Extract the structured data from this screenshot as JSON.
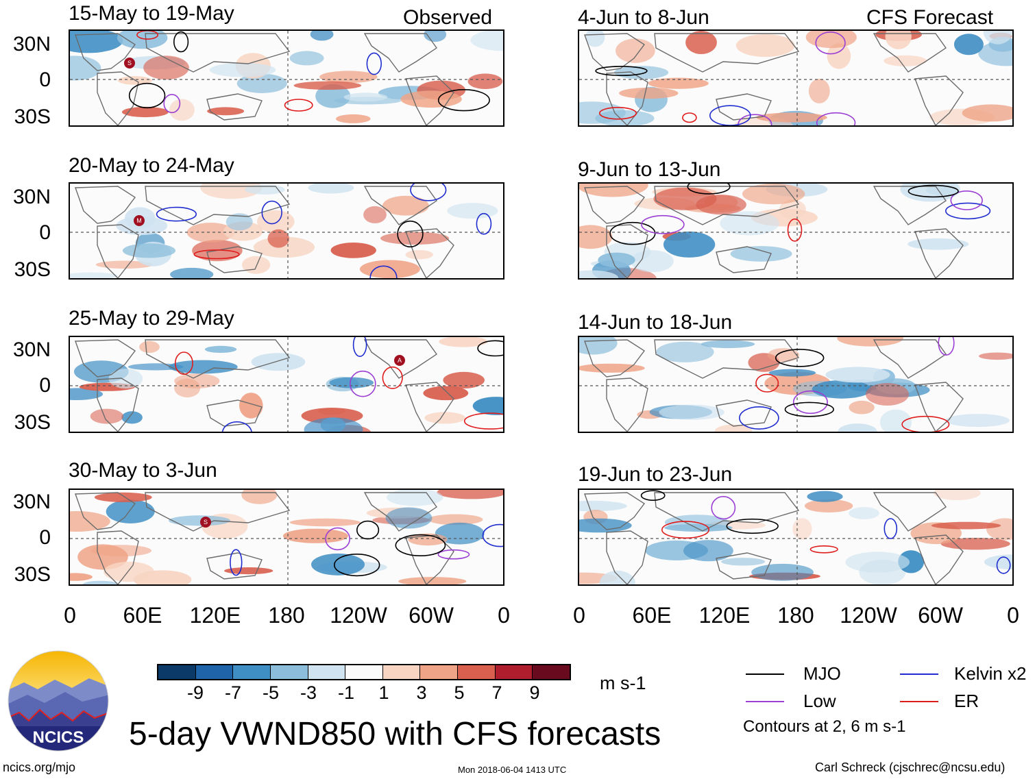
{
  "figure_title": "5-day VWND850 with CFS forecasts",
  "column_labels": {
    "observed": "Observed",
    "forecast": "CFS Forecast"
  },
  "lat_labels": [
    "30N",
    "0",
    "30S"
  ],
  "lon_labels": [
    "0",
    "60E",
    "120E",
    "180",
    "120W",
    "60W",
    "0"
  ],
  "panels_observed": [
    {
      "title": "15-May to 19-May",
      "tc_marker": "S"
    },
    {
      "title": "20-May to 24-May",
      "tc_marker": "M"
    },
    {
      "title": "25-May to 29-May",
      "tc_marker": "A"
    },
    {
      "title": "30-May to 3-Jun",
      "tc_marker": "S"
    }
  ],
  "panels_forecast": [
    {
      "title": "4-Jun to 8-Jun"
    },
    {
      "title": "9-Jun to 13-Jun"
    },
    {
      "title": "14-Jun to 18-Jun"
    },
    {
      "title": "19-Jun to 23-Jun"
    }
  ],
  "colorbar": {
    "colors": [
      "#0b3a68",
      "#1f64a8",
      "#3f8ec4",
      "#8cbedc",
      "#cfe3f0",
      "#fbfbfb",
      "#f8d5c3",
      "#efa487",
      "#d9604f",
      "#b01d2d",
      "#6a0a1e"
    ],
    "tick_labels": [
      "-9",
      "-7",
      "-5",
      "-3",
      "-1",
      "1",
      "3",
      "5",
      "7",
      "9"
    ],
    "units": "m s-1"
  },
  "legend": {
    "items": [
      {
        "label": "MJO",
        "color": "#000000"
      },
      {
        "label": "Kelvin x2",
        "color": "#1f2ccf"
      },
      {
        "label": "Low",
        "color": "#9b3fd4"
      },
      {
        "label": "ER",
        "color": "#e01b1b"
      }
    ],
    "contour_note": "Contours at 2, 6 m s-1"
  },
  "logo_text": "NCICS",
  "footer": {
    "url": "ncics.org/mjo",
    "timestamp": "Mon 2018-06-04 1413 UTC",
    "author": "Carl Schreck (cjschrec@ncsu.edu)"
  }
}
